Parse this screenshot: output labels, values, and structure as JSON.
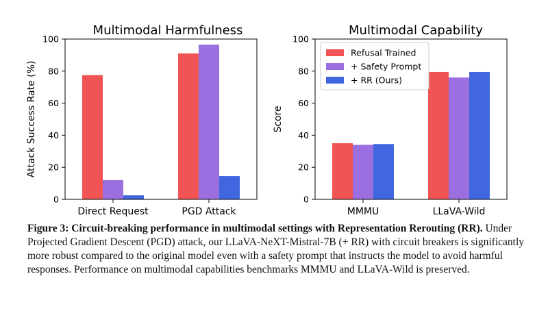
{
  "chart_data": [
    {
      "type": "bar",
      "title": "Multimodal Harmfulness",
      "ylabel": "Attack Success Rate (%)",
      "xlabel": "",
      "ylim": [
        0,
        100
      ],
      "yticks": [
        0,
        20,
        40,
        60,
        80,
        100
      ],
      "categories": [
        "Direct Request",
        "PGD Attack"
      ],
      "series": [
        {
          "name": "Refusal Trained",
          "color": "#f05454",
          "values": [
            77.5,
            91
          ]
        },
        {
          "name": "+ Safety Prompt",
          "color": "#9b6fe0",
          "values": [
            12,
            96.5
          ]
        },
        {
          "name": "+ RR (Ours)",
          "color": "#4066e0",
          "values": [
            2.5,
            14.5
          ]
        }
      ],
      "legend": "none"
    },
    {
      "type": "bar",
      "title": "Multimodal Capability",
      "ylabel": "Score",
      "xlabel": "",
      "ylim": [
        0,
        100
      ],
      "yticks": [
        0,
        20,
        40,
        60,
        80,
        100
      ],
      "categories": [
        "MMMU",
        "LLaVA-Wild"
      ],
      "series": [
        {
          "name": "Refusal Trained",
          "color": "#f05454",
          "values": [
            35,
            79.5
          ]
        },
        {
          "name": "+ Safety Prompt",
          "color": "#9b6fe0",
          "values": [
            34,
            76
          ]
        },
        {
          "name": "+ RR (Ours)",
          "color": "#4066e0",
          "values": [
            34.5,
            79.5
          ]
        }
      ],
      "legend": "top-left"
    }
  ],
  "caption": {
    "label": "Figure 3:",
    "bold_part": "Circuit-breaking performance in multimodal settings with Representation Rerouting (RR).",
    "text": "Under Projected Gradient Descent (PGD) attack, our LLaVA-NeXT-Mistral-7B (+ RR) with circuit breakers is significantly more robust compared to the original model even with a safety prompt that instructs the model to avoid harmful responses. Performance on multimodal capabilities benchmarks MMMU and LLaVA-Wild is preserved."
  }
}
